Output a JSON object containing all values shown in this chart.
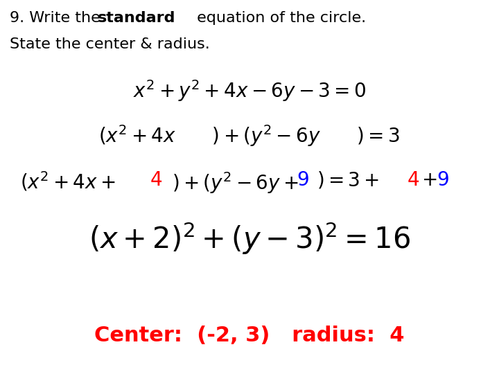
{
  "title_line1": "9. Write the ",
  "title_bold": "standard",
  "title_line1_rest": " equation of the circle.",
  "title_line2": "State the center & radius.",
  "eq1": "$x^2 + y^2 + 4x - 6y - 3 = 0$",
  "eq2": "$(x^2 + 4x\\quad\\;)+(y^2 - 6y\\quad\\;)= 3$",
  "eq3_black_1": "$(x^2 + 4x+$",
  "eq3_red": "$4$",
  "eq3_black_2": "$)+(y^2-6y+$",
  "eq3_blue": "$9$",
  "eq3_black_3": "$)=3+$",
  "eq3_red2": "$4$",
  "eq3_black_4": "$+$",
  "eq3_blue2": "$9$",
  "eq4": "$(x+2)^2+(y-3)^2=16$",
  "center_text": "Center:  (-2, 3)   radius:  4",
  "bg_color": "#ffffff",
  "text_color": "#000000",
  "red_color": "#ff0000",
  "blue_color": "#0000ff"
}
